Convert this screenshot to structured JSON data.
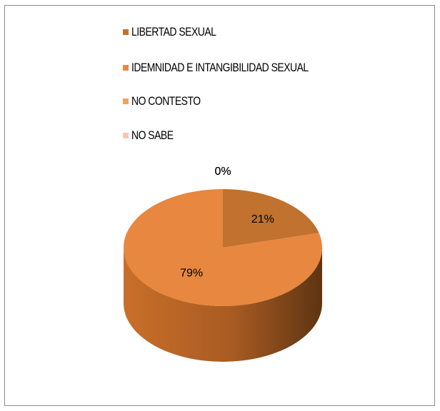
{
  "chart_data": {
    "type": "pie",
    "title": "",
    "legend_position": "top",
    "three_d": true,
    "series": [
      {
        "name": "LIBERTAD SEXUAL",
        "value": 21,
        "label": "21%",
        "color": "#C0722E"
      },
      {
        "name": "IDEMNIDAD E INTANGIBILIDAD SEXUAL",
        "value": 79,
        "label": "79%",
        "color": "#E8873F"
      },
      {
        "name": "NO CONTESTO",
        "value": 0,
        "label": "0%",
        "color": "#F2A25F"
      },
      {
        "name": "NO SABE",
        "value": 0,
        "label": "0%",
        "color": "#F5C7B0"
      }
    ]
  }
}
